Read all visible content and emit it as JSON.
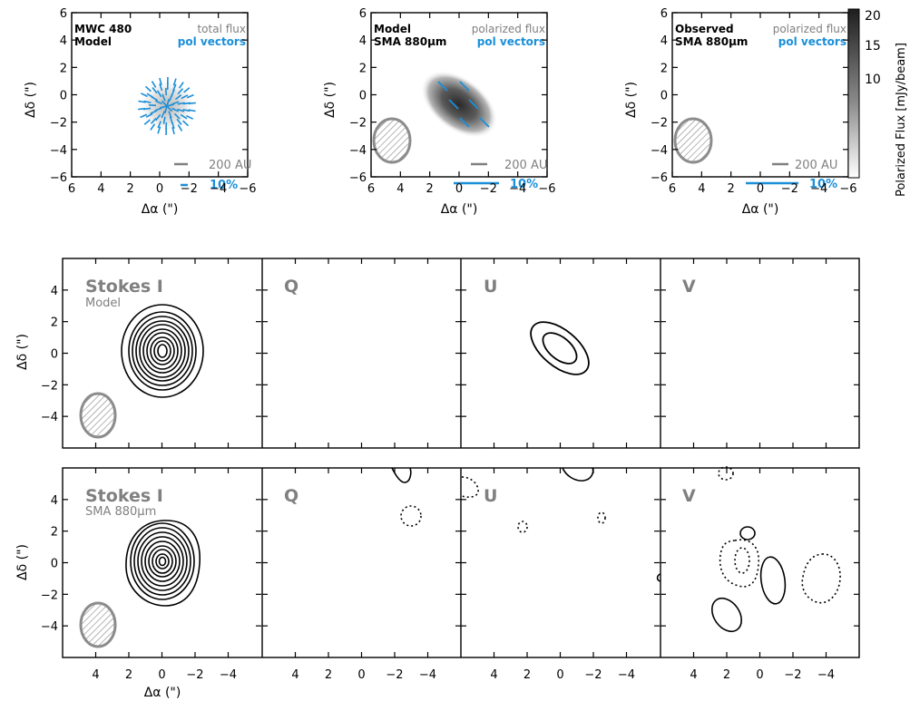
{
  "top_panels": [
    {
      "id": "p1",
      "title_lines": [
        "MWC 480",
        "Model"
      ],
      "legend_lines": [
        "total flux",
        "pol vectors"
      ],
      "scale_label": "200 AU",
      "pct_label": "10%",
      "xlabel": "Δα (\")",
      "ylabel": "Δδ (\")",
      "x_ticks": [
        "6",
        "4",
        "2",
        "0",
        "−2",
        "−4",
        "−6"
      ],
      "y_ticks": [
        "6",
        "4",
        "2",
        "0",
        "−2",
        "−4",
        "−6"
      ]
    },
    {
      "id": "p2",
      "title_lines": [
        "Model",
        "SMA 880μm"
      ],
      "legend_lines": [
        "polarized flux",
        "pol vectors"
      ],
      "scale_label": "200 AU",
      "pct_label": "10%",
      "xlabel": "Δα (\")",
      "ylabel": "Δδ (\")",
      "x_ticks": [
        "6",
        "4",
        "2",
        "0",
        "−2",
        "−4",
        "−6"
      ],
      "y_ticks": [
        "6",
        "4",
        "2",
        "0",
        "−2",
        "−4",
        "−6"
      ]
    },
    {
      "id": "p3",
      "title_lines": [
        "Observed",
        "SMA 880μm"
      ],
      "legend_lines": [
        "polarized flux",
        "pol vectors"
      ],
      "scale_label": "200 AU",
      "pct_label": "10%",
      "xlabel": "Δα (\")",
      "ylabel": "Δδ (\")",
      "x_ticks": [
        "6",
        "4",
        "2",
        "0",
        "−2",
        "−4",
        "−6"
      ],
      "y_ticks": [
        "6",
        "4",
        "2",
        "0",
        "−2",
        "−4",
        "−6"
      ]
    }
  ],
  "colorbar": {
    "label": "Polarized Flux [mJy/beam]",
    "ticks": [
      "20",
      "15",
      "10"
    ]
  },
  "middle_row": {
    "panels": [
      {
        "label": "Stokes I",
        "sublabel": "Model"
      },
      {
        "label": "Q",
        "sublabel": ""
      },
      {
        "label": "U",
        "sublabel": ""
      },
      {
        "label": "V",
        "sublabel": ""
      }
    ],
    "ylabel": "Δδ (\")",
    "y_ticks": [
      "4",
      "2",
      "0",
      "−2",
      "−4"
    ]
  },
  "bottom_row": {
    "panels": [
      {
        "label": "Stokes I",
        "sublabel": "SMA 880μm"
      },
      {
        "label": "Q",
        "sublabel": ""
      },
      {
        "label": "U",
        "sublabel": ""
      },
      {
        "label": "V",
        "sublabel": ""
      }
    ],
    "ylabel": "Δδ (\")",
    "xlabel": "Δα (\")",
    "y_ticks": [
      "4",
      "2",
      "0",
      "−2",
      "−4"
    ],
    "x_ticks": [
      "4",
      "2",
      "0",
      "−2",
      "−4"
    ]
  },
  "colors": {
    "pol_blue": "#1a8fd8",
    "gray_text": "#808080",
    "beam_gray": "#8c8c8c"
  }
}
